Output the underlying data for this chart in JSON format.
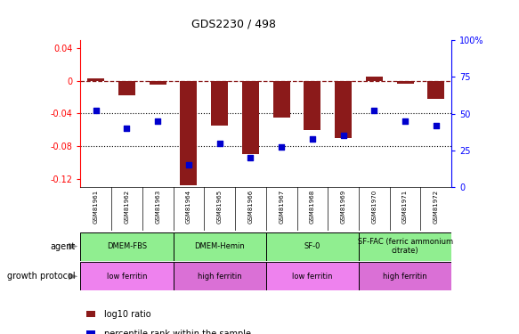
{
  "title": "GDS2230 / 498",
  "samples": [
    "GSM81961",
    "GSM81962",
    "GSM81963",
    "GSM81964",
    "GSM81965",
    "GSM81966",
    "GSM81967",
    "GSM81968",
    "GSM81969",
    "GSM81970",
    "GSM81971",
    "GSM81972"
  ],
  "log10_ratio": [
    0.003,
    -0.018,
    -0.005,
    -0.128,
    -0.055,
    -0.09,
    -0.045,
    -0.06,
    -0.07,
    0.005,
    -0.003,
    -0.022
  ],
  "percentile_rank": [
    52,
    40,
    45,
    15,
    30,
    20,
    27,
    33,
    35,
    52,
    45,
    42
  ],
  "ylim_left": [
    -0.13,
    0.05
  ],
  "ylim_right": [
    0,
    100
  ],
  "yticks_left": [
    -0.12,
    -0.08,
    -0.04,
    0.0,
    0.04
  ],
  "yticks_left_labels": [
    "-0.12",
    "-0.08",
    "-0.04",
    "0",
    "0.04"
  ],
  "yticks_right": [
    0,
    25,
    50,
    75,
    100
  ],
  "yticks_right_labels": [
    "0",
    "25",
    "50",
    "75",
    "100%"
  ],
  "hline_y": 0.0,
  "dotted_lines": [
    -0.04,
    -0.08
  ],
  "bar_color": "#8B1A1A",
  "dot_color": "#0000CD",
  "agent_groups": [
    {
      "label": "DMEM-FBS",
      "start": 0,
      "end": 2,
      "color": "#90EE90"
    },
    {
      "label": "DMEM-Hemin",
      "start": 3,
      "end": 5,
      "color": "#90EE90"
    },
    {
      "label": "SF-0",
      "start": 6,
      "end": 8,
      "color": "#90EE90"
    },
    {
      "label": "SF-FAC (ferric ammonium\ncitrate)",
      "start": 9,
      "end": 11,
      "color": "#90EE90"
    }
  ],
  "growth_groups": [
    {
      "label": "low ferritin",
      "start": 0,
      "end": 2,
      "color": "#EE82EE"
    },
    {
      "label": "high ferritin",
      "start": 3,
      "end": 5,
      "color": "#DA70D6"
    },
    {
      "label": "low ferritin",
      "start": 6,
      "end": 8,
      "color": "#EE82EE"
    },
    {
      "label": "high ferritin",
      "start": 9,
      "end": 11,
      "color": "#DA70D6"
    }
  ],
  "agent_label": "agent",
  "growth_label": "growth protocol",
  "legend_bar_label": "log10 ratio",
  "legend_dot_label": "percentile rank within the sample",
  "background_color": "#FFFFFF",
  "plot_bg_color": "#FFFFFF",
  "xtick_bg": "#C8C8C8"
}
